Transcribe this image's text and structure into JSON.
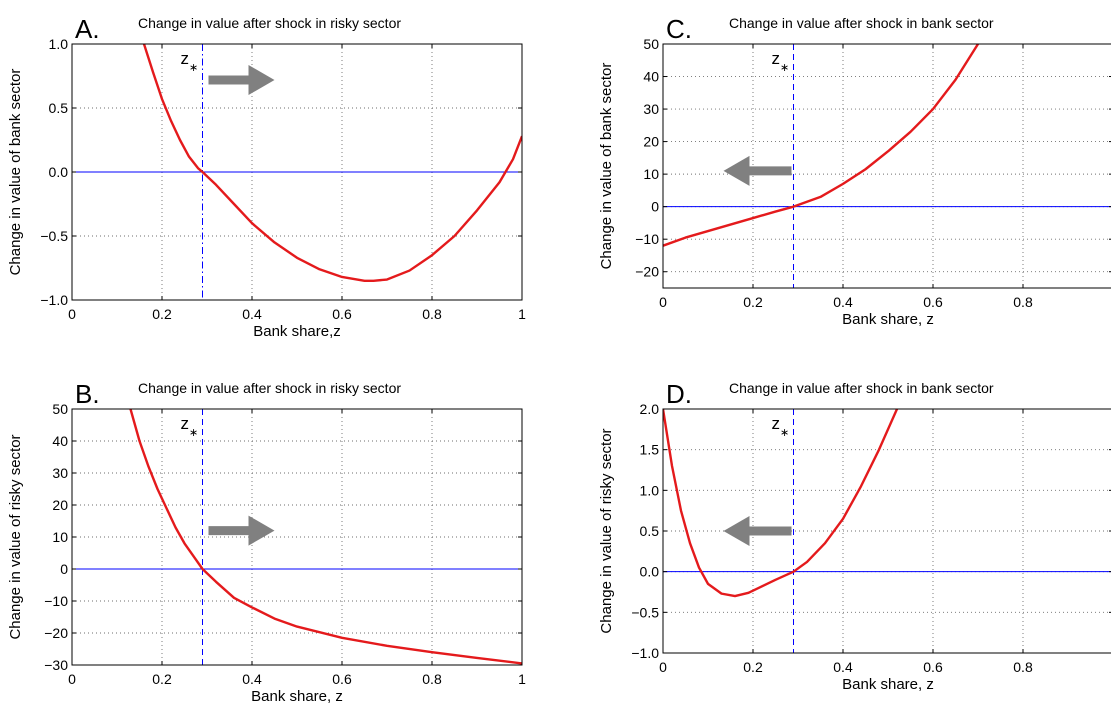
{
  "chart_data": [
    {
      "type": "line",
      "panel_letter": "A.",
      "title": "Change in value after shock in risky sector",
      "xlabel": "Bank share,z",
      "ylabel": "Change in value of bank sector",
      "xlim": [
        0,
        1
      ],
      "ylim": [
        -1,
        1
      ],
      "xticks": [
        0,
        0.2,
        0.4,
        0.6,
        0.8,
        1
      ],
      "xtick_labels": [
        "0",
        "0.2",
        "0.4",
        "0.6",
        "0.8",
        "1"
      ],
      "yticks": [
        -1,
        -0.5,
        0,
        0.5,
        1
      ],
      "ytick_labels": [
        "−1.0",
        "−0.5",
        "0.0",
        "0.5",
        "1.0"
      ],
      "grid": true,
      "zstar_label": "z",
      "zstar_x": 0.29,
      "arrow_direction": "right",
      "baseline_y": 0,
      "series": [
        {
          "color": "#e41a1c",
          "x": [
            0.16,
            0.18,
            0.2,
            0.22,
            0.24,
            0.26,
            0.28,
            0.29,
            0.32,
            0.36,
            0.4,
            0.45,
            0.5,
            0.55,
            0.6,
            0.65,
            0.67,
            0.7,
            0.75,
            0.8,
            0.85,
            0.9,
            0.95,
            0.98,
            1.0
          ],
          "y": [
            1.0,
            0.78,
            0.57,
            0.4,
            0.25,
            0.12,
            0.03,
            0.0,
            -0.1,
            -0.25,
            -0.4,
            -0.55,
            -0.67,
            -0.76,
            -0.82,
            -0.85,
            -0.85,
            -0.84,
            -0.77,
            -0.65,
            -0.5,
            -0.3,
            -0.08,
            0.1,
            0.28
          ]
        }
      ]
    },
    {
      "type": "line",
      "panel_letter": "B.",
      "title": "Change in value after shock in risky sector",
      "xlabel": "Bank share, z",
      "ylabel": "Change in value of risky sector",
      "xlim": [
        0,
        1
      ],
      "ylim": [
        -30,
        50
      ],
      "xticks": [
        0,
        0.2,
        0.4,
        0.6,
        0.8,
        1
      ],
      "xtick_labels": [
        "0",
        "0.2",
        "0.4",
        "0.6",
        "0.8",
        "1"
      ],
      "yticks": [
        -30,
        -20,
        -10,
        0,
        10,
        20,
        30,
        40,
        50
      ],
      "ytick_labels": [
        "−30",
        "−20",
        "−10",
        "0",
        "10",
        "20",
        "30",
        "40",
        "50"
      ],
      "grid": true,
      "zstar_label": "z",
      "zstar_x": 0.29,
      "arrow_direction": "right",
      "baseline_y": 0,
      "series": [
        {
          "color": "#e41a1c",
          "x": [
            0.13,
            0.15,
            0.17,
            0.19,
            0.21,
            0.23,
            0.25,
            0.27,
            0.29,
            0.32,
            0.36,
            0.4,
            0.45,
            0.5,
            0.6,
            0.7,
            0.8,
            0.9,
            1.0
          ],
          "y": [
            50,
            40,
            32,
            25,
            19,
            13,
            8,
            4,
            0,
            -4,
            -9,
            -12,
            -15.5,
            -18,
            -21.5,
            -24,
            -26,
            -27.8,
            -29.5
          ]
        }
      ]
    },
    {
      "type": "line",
      "panel_letter": "C.",
      "title": "Change in value after shock in bank sector",
      "xlabel": "Bank share, z",
      "ylabel": "Change in value of bank sector",
      "xlim": [
        0,
        1
      ],
      "ylim": [
        -25,
        50
      ],
      "xticks": [
        0,
        0.2,
        0.4,
        0.6,
        0.8
      ],
      "xtick_labels": [
        "0",
        "0.2",
        "0.4",
        "0.6",
        "0.8"
      ],
      "yticks": [
        -20,
        -10,
        0,
        10,
        20,
        30,
        40,
        50
      ],
      "ytick_labels": [
        "−20",
        "−10",
        "0",
        "10",
        "20",
        "30",
        "40",
        "50"
      ],
      "grid": true,
      "zstar_label": "z",
      "zstar_x": 0.29,
      "arrow_direction": "left",
      "baseline_y": 0,
      "series": [
        {
          "color": "#e41a1c",
          "x": [
            0,
            0.05,
            0.1,
            0.15,
            0.2,
            0.25,
            0.29,
            0.35,
            0.4,
            0.45,
            0.5,
            0.55,
            0.6,
            0.65,
            0.7
          ],
          "y": [
            -12,
            -9.5,
            -7.5,
            -5.5,
            -3.5,
            -1.5,
            0,
            3,
            7,
            11.5,
            17,
            23,
            30,
            39,
            50
          ]
        }
      ]
    },
    {
      "type": "line",
      "panel_letter": "D.",
      "title": "Change in value after shock in bank sector",
      "xlabel": "Bank share, z",
      "ylabel": "Change in value of risky sector",
      "xlim": [
        0,
        1
      ],
      "ylim": [
        -1,
        2
      ],
      "xticks": [
        0,
        0.2,
        0.4,
        0.6,
        0.8
      ],
      "xtick_labels": [
        "0",
        "0.2",
        "0.4",
        "0.6",
        "0.8"
      ],
      "yticks": [
        -1,
        -0.5,
        0,
        0.5,
        1,
        1.5,
        2
      ],
      "ytick_labels": [
        "−1.0",
        "−0.5",
        "0.0",
        "0.5",
        "1.0",
        "1.5",
        "2.0"
      ],
      "grid": true,
      "zstar_label": "z",
      "zstar_x": 0.29,
      "arrow_direction": "left",
      "baseline_y": 0,
      "series": [
        {
          "color": "#e41a1c",
          "x": [
            0.0,
            0.02,
            0.04,
            0.06,
            0.08,
            0.1,
            0.13,
            0.16,
            0.19,
            0.22,
            0.25,
            0.29,
            0.32,
            0.36,
            0.4,
            0.44,
            0.48,
            0.52
          ],
          "y": [
            2.0,
            1.3,
            0.75,
            0.35,
            0.05,
            -0.15,
            -0.27,
            -0.3,
            -0.26,
            -0.18,
            -0.1,
            0.0,
            0.12,
            0.35,
            0.65,
            1.05,
            1.5,
            2.0
          ]
        }
      ]
    }
  ]
}
